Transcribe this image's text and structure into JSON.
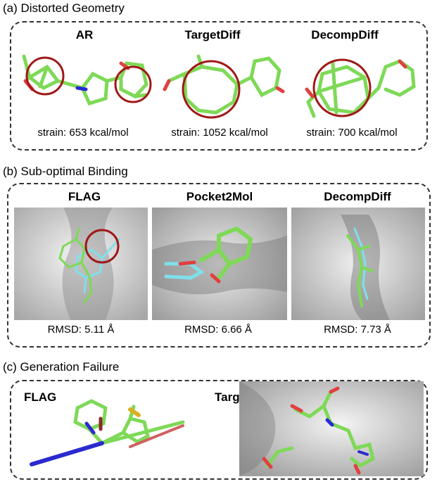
{
  "sections": {
    "a": {
      "title": "(a) Distorted Geometry",
      "items": [
        {
          "method": "AR",
          "caption": "strain: 653 kcal/mol"
        },
        {
          "method": "TargetDiff",
          "caption": "strain: 1052 kcal/mol"
        },
        {
          "method": "DecompDiff",
          "caption": "strain: 700 kcal/mol"
        }
      ]
    },
    "b": {
      "title": "(b) Sub-optimal Binding",
      "items": [
        {
          "method": "FLAG",
          "caption": "RMSD: 5.11 Å"
        },
        {
          "method": "Pocket2Mol",
          "caption": "RMSD: 6.66 Å"
        },
        {
          "method": "DecompDiff",
          "caption": "RMSD: 7.73 Å"
        }
      ]
    },
    "c": {
      "title": "(c) Generation Failure",
      "items": [
        {
          "method": "FLAG"
        },
        {
          "method": "TargetDiff"
        }
      ]
    }
  },
  "colors": {
    "carbon": "#7ed957",
    "oxygen": "#e04040",
    "nitrogen": "#2a2ad0",
    "sulfur": "#d8b020",
    "reference": "#7fe0ea",
    "highlight_circle": "#a01818",
    "surface": "#d0d0d0"
  }
}
